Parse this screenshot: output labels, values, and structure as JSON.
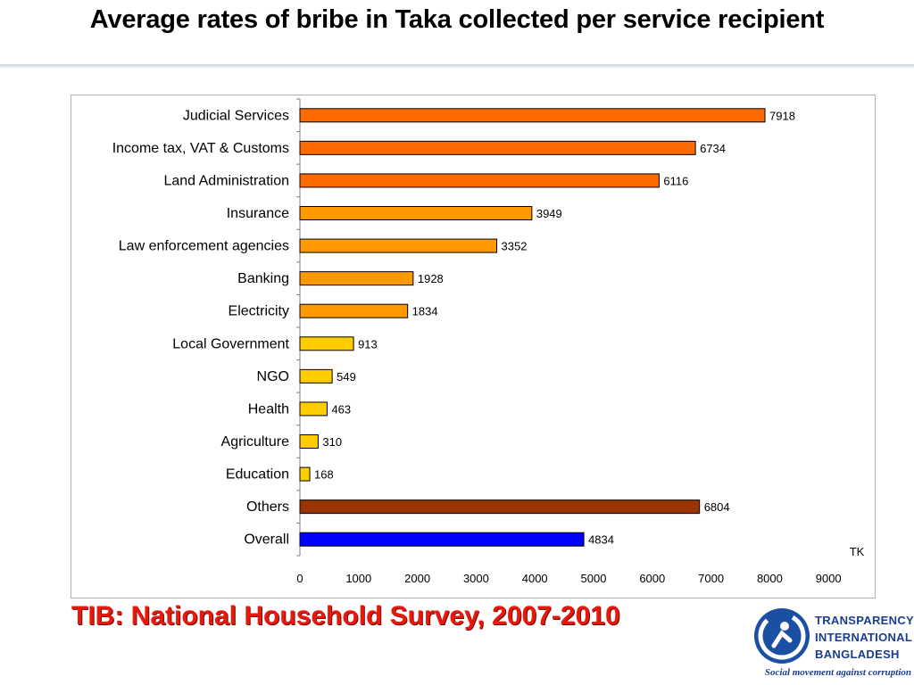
{
  "slide": {
    "title": "Average rates of bribe in Taka collected per service recipient",
    "source": "TIB: National Household Survey, 2007-2010"
  },
  "logo": {
    "line1": "TRANSPARENCY",
    "line2": "INTERNATIONAL",
    "line3": "BANGLADESH",
    "tagline": "Social movement against corruption"
  },
  "chart_data": {
    "type": "bar",
    "orientation": "horizontal",
    "title": "",
    "xlabel": "",
    "unit_label": "TK",
    "xlim": [
      0,
      9000
    ],
    "x_ticks": [
      0,
      1000,
      2000,
      3000,
      4000,
      5000,
      6000,
      7000,
      8000,
      9000
    ],
    "grid": false,
    "categories": [
      "Judicial Services",
      "Income tax, VAT & Customs",
      "Land Administration",
      "Insurance",
      "Law enforcement agencies",
      "Banking",
      "Electricity",
      "Local Government",
      "NGO",
      "Health",
      "Agriculture",
      "Education",
      "Others",
      "Overall"
    ],
    "values": [
      7918,
      6734,
      6116,
      3949,
      3352,
      1928,
      1834,
      913,
      549,
      463,
      310,
      168,
      6804,
      4834
    ],
    "colors": [
      "#ff6a00",
      "#ff6a00",
      "#ff6a00",
      "#ff9900",
      "#ff9900",
      "#ff9900",
      "#ff9900",
      "#ffcc00",
      "#ffcc00",
      "#ffcc00",
      "#ffcc00",
      "#ffcc00",
      "#993300",
      "#0000ff"
    ]
  }
}
